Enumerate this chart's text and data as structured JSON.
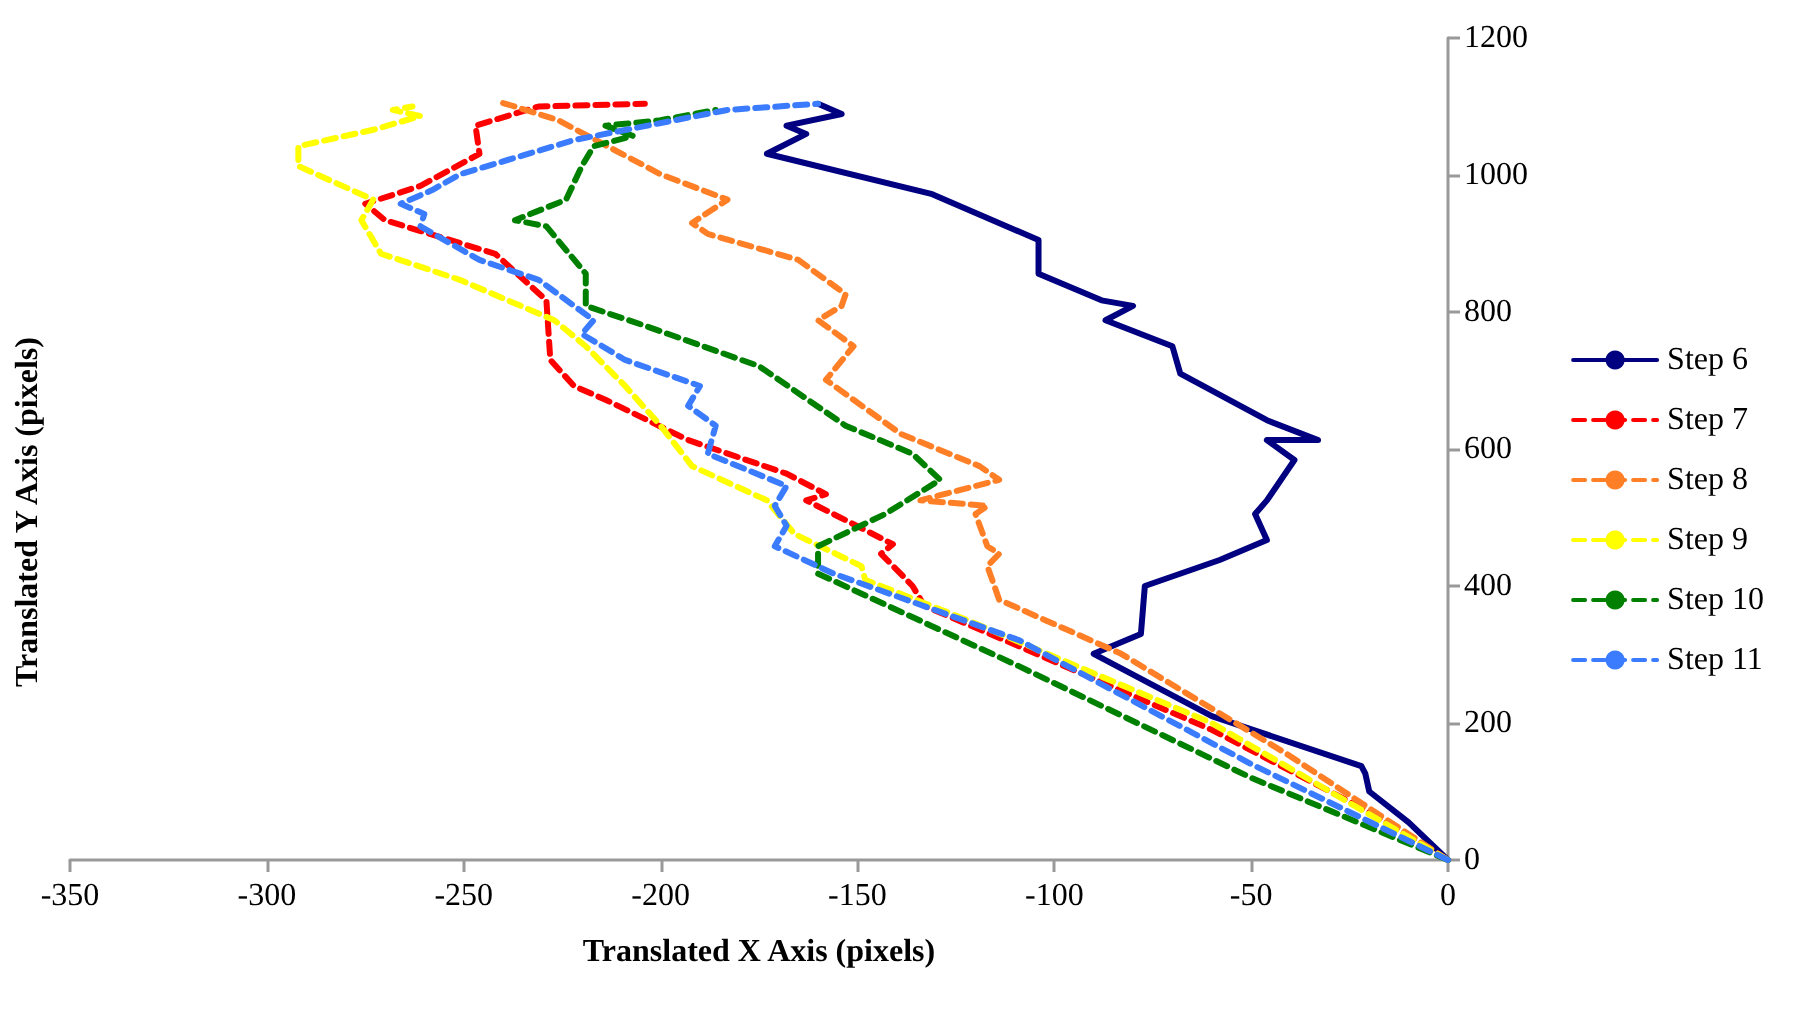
{
  "chart_data": {
    "type": "line",
    "xlabel": "Translated X Axis (pixels)",
    "ylabel": "Translated Y Axis (pixels)",
    "xlim": [
      -350,
      0
    ],
    "xticks": [
      -350,
      -300,
      -250,
      -200,
      -150,
      -100,
      -50,
      0
    ],
    "ylim": [
      0,
      1200
    ],
    "yticks": [
      0,
      200,
      400,
      600,
      800,
      1000,
      1200
    ],
    "grid": false,
    "legend": "right",
    "marker": "none",
    "series": [
      {
        "name": "Step 6",
        "color": "#000080",
        "line_style": "solid",
        "x": [
          0,
          -10,
          -20,
          -21,
          -22,
          -60,
          -90,
          -78,
          -77,
          -58,
          -46,
          -49,
          -46,
          -39,
          -46,
          -33,
          -46,
          -68,
          -70,
          -87,
          -80,
          -88,
          -104,
          -104,
          -131,
          -173,
          -163,
          -168,
          -154,
          -160
        ],
        "values": [
          0,
          55,
          100,
          126,
          137,
          210,
          301,
          330,
          400,
          438,
          467,
          505,
          525,
          584,
          613,
          613,
          642,
          710,
          750,
          788,
          809,
          817,
          856,
          905,
          972,
          1031,
          1060,
          1072,
          1089,
          1104
        ]
      },
      {
        "name": "Step 7",
        "color": "#ff0000",
        "line_style": "dashed",
        "x": [
          0,
          -20,
          -60,
          -109,
          -133,
          -136,
          -144,
          -141,
          -153,
          -163,
          -158,
          -168,
          -193,
          -214,
          -222,
          -228,
          -229,
          -242,
          -270,
          -275,
          -261,
          -246,
          -247,
          -231,
          -204
        ],
        "values": [
          0,
          70,
          190,
          312,
          371,
          400,
          447,
          461,
          496,
          525,
          534,
          564,
          613,
          672,
          692,
          730,
          817,
          885,
          934,
          958,
          984,
          1031,
          1072,
          1100,
          1104
        ]
      },
      {
        "name": "Step 8",
        "color": "#ff7f27",
        "line_style": "dashed",
        "x": [
          0,
          -41,
          -83,
          -114,
          -117,
          -114,
          -117,
          -120,
          -117,
          -134,
          -114,
          -119,
          -139,
          -158,
          -151,
          -160,
          -154,
          -153,
          -165,
          -188,
          -192,
          -183,
          -200,
          -226,
          -237,
          -240
        ],
        "values": [
          0,
          155,
          301,
          380,
          429,
          447,
          458,
          505,
          517,
          525,
          555,
          575,
          622,
          701,
          750,
          788,
          809,
          826,
          876,
          914,
          930,
          964,
          1001,
          1080,
          1100,
          1105
        ]
      },
      {
        "name": "Step 9",
        "color": "#ffff00",
        "line_style": "dashed",
        "x": [
          0,
          -60,
          -122,
          -148,
          -149,
          -166,
          -173,
          -192,
          -200,
          -209,
          -219,
          -227,
          -251,
          -271,
          -276,
          -273,
          -292,
          -292,
          -273,
          -261,
          -268,
          -263
        ],
        "values": [
          0,
          200,
          350,
          409,
          429,
          476,
          525,
          575,
          634,
          692,
          750,
          788,
          847,
          885,
          934,
          964,
          1013,
          1042,
          1066,
          1086,
          1095,
          1100
        ]
      },
      {
        "name": "Step 10",
        "color": "#008000",
        "line_style": "dashed",
        "x": [
          0,
          -50,
          -109,
          -160,
          -160,
          -143,
          -129,
          -136,
          -153,
          -175,
          -204,
          -219,
          -219,
          -229,
          -237,
          -224,
          -220,
          -217,
          -207,
          -214,
          -200,
          -186
        ],
        "values": [
          0,
          120,
          283,
          418,
          458,
          505,
          555,
          593,
          634,
          721,
          780,
          809,
          856,
          925,
          934,
          964,
          1013,
          1042,
          1057,
          1072,
          1080,
          1095
        ]
      },
      {
        "name": "Step 11",
        "color": "#3b7cff",
        "line_style": "dashed",
        "x": [
          0,
          -50,
          -109,
          -156,
          -171,
          -168,
          -171,
          -168,
          -188,
          -186,
          -193,
          -190,
          -209,
          -220,
          -217,
          -231,
          -246,
          -261,
          -260,
          -266,
          -258,
          -251,
          -222,
          -183,
          -160
        ],
        "values": [
          0,
          140,
          321,
          418,
          458,
          488,
          517,
          546,
          593,
          634,
          663,
          692,
          730,
          768,
          788,
          847,
          876,
          925,
          943,
          958,
          978,
          1001,
          1051,
          1095,
          1104
        ]
      }
    ]
  }
}
